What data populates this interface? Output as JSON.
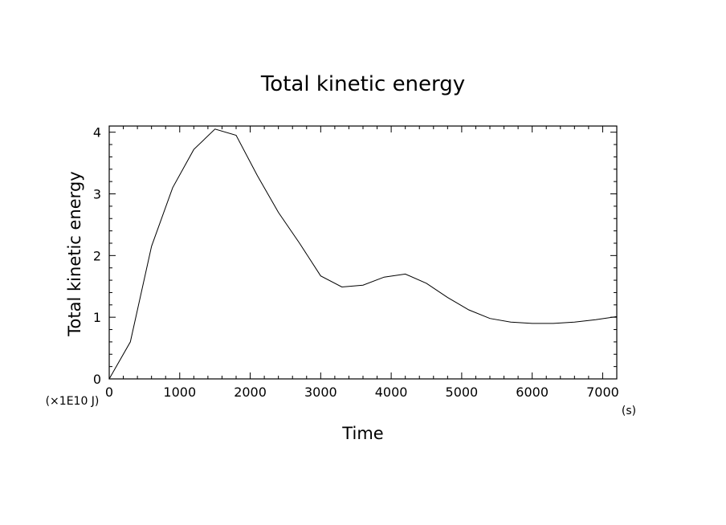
{
  "chart_data": {
    "type": "line",
    "title": "Total kinetic energy",
    "xlabel": "Time",
    "ylabel": "Total kinetic energy",
    "x_unit": "(s)",
    "y_unit": "(×1E10 J)",
    "xlim": [
      0,
      7200
    ],
    "ylim": [
      0,
      4.1
    ],
    "x_ticks": [
      0,
      1000,
      2000,
      3000,
      4000,
      5000,
      6000,
      7000
    ],
    "y_ticks": [
      0,
      1,
      2,
      3,
      4
    ],
    "grid": false,
    "series": [
      {
        "x": [
          0,
          300,
          600,
          900,
          1200,
          1500,
          1800,
          2100,
          2400,
          2700,
          3000,
          3300,
          3600,
          3900,
          4200,
          4500,
          4800,
          5100,
          5400,
          5700,
          6000,
          6300,
          6600,
          6900,
          7200
        ],
        "y": [
          0,
          0.6,
          2.15,
          3.1,
          3.72,
          4.05,
          3.95,
          3.3,
          2.7,
          2.2,
          1.67,
          1.49,
          1.52,
          1.65,
          1.7,
          1.55,
          1.32,
          1.12,
          0.98,
          0.92,
          0.9,
          0.9,
          0.92,
          0.96,
          1.01
        ]
      }
    ]
  }
}
